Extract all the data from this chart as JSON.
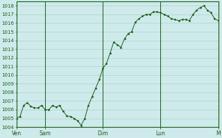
{
  "bg_color": "#ceeaea",
  "grid_color": "#aacaca",
  "grid_color_light": "#bcdcdc",
  "line_color": "#1a5c1a",
  "marker_color": "#1a5c1a",
  "ylim": [
    1004,
    1018.5
  ],
  "yticks": [
    1004,
    1005,
    1006,
    1007,
    1008,
    1009,
    1010,
    1011,
    1012,
    1013,
    1014,
    1015,
    1016,
    1017,
    1018
  ],
  "day_labels": [
    "Ven",
    "Sam",
    "Dim",
    "Lun",
    "M"
  ],
  "day_positions": [
    0,
    0.143,
    0.429,
    0.714,
    1.0
  ],
  "x_values": [
    0.0,
    0.018,
    0.036,
    0.054,
    0.071,
    0.089,
    0.107,
    0.125,
    0.143,
    0.161,
    0.179,
    0.196,
    0.214,
    0.232,
    0.25,
    0.268,
    0.286,
    0.304,
    0.321,
    0.339,
    0.357,
    0.375,
    0.393,
    0.411,
    0.429,
    0.446,
    0.464,
    0.482,
    0.5,
    0.518,
    0.536,
    0.554,
    0.571,
    0.589,
    0.607,
    0.625,
    0.643,
    0.661,
    0.679,
    0.696,
    0.714,
    0.732,
    0.75,
    0.768,
    0.786,
    0.804,
    0.821,
    0.839,
    0.857,
    0.875,
    0.893,
    0.911,
    0.929,
    0.946,
    0.964,
    0.982,
    1.0
  ],
  "y_values": [
    1005.0,
    1005.2,
    1006.5,
    1006.8,
    1006.4,
    1006.2,
    1006.2,
    1006.5,
    1006.0,
    1006.0,
    1006.5,
    1006.3,
    1006.5,
    1005.8,
    1005.3,
    1005.2,
    1005.0,
    1004.7,
    1004.2,
    1005.0,
    1006.5,
    1007.5,
    1008.5,
    1009.5,
    1010.8,
    1011.3,
    1012.5,
    1013.8,
    1013.5,
    1013.2,
    1014.2,
    1014.8,
    1015.0,
    1016.1,
    1016.5,
    1016.8,
    1017.0,
    1017.0,
    1017.3,
    1017.3,
    1017.2,
    1017.0,
    1016.8,
    1016.5,
    1016.4,
    1016.3,
    1016.4,
    1016.4,
    1016.3,
    1017.0,
    1017.5,
    1017.8,
    1018.0,
    1017.5,
    1017.2,
    1016.5,
    1016.3
  ],
  "xlim": [
    0.0,
    1.0
  ]
}
